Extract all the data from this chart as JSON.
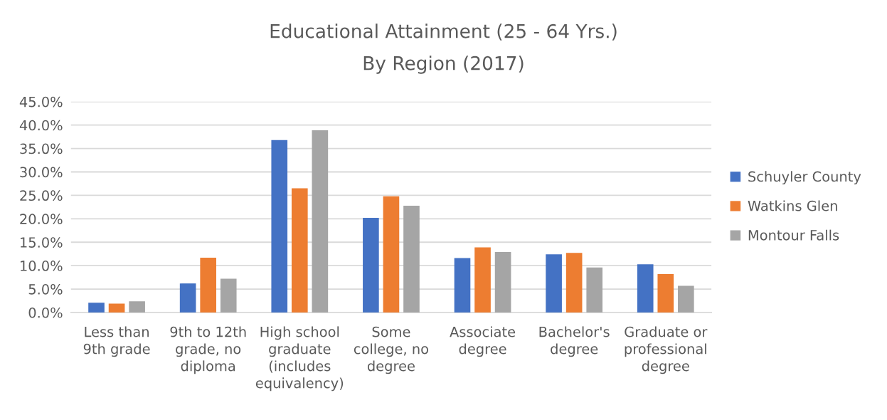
{
  "chart_data": {
    "type": "bar",
    "title": "Educational Attainment (25 - 64 Yrs.)",
    "subtitle": "By Region (2017)",
    "categories": [
      "Less than 9th grade",
      "9th to 12th grade, no diploma",
      "High school graduate (includes equivalency)",
      "Some college, no degree",
      "Associate degree",
      "Bachelor's degree",
      "Graduate or professional degree"
    ],
    "series": [
      {
        "name": "Schuyler County",
        "color": "#4472c4",
        "values": [
          2.1,
          6.2,
          36.8,
          20.2,
          11.6,
          12.4,
          10.3
        ]
      },
      {
        "name": "Watkins Glen",
        "color": "#ed7d31",
        "values": [
          1.9,
          11.7,
          26.5,
          24.8,
          13.9,
          12.7,
          8.2
        ]
      },
      {
        "name": "Montour Falls",
        "color": "#a5a5a5",
        "values": [
          2.4,
          7.2,
          38.9,
          22.8,
          12.9,
          9.6,
          5.7
        ]
      }
    ],
    "ylim": [
      0,
      45
    ],
    "yticks": [
      {
        "value": 0,
        "label": "0.0%"
      },
      {
        "value": 5,
        "label": "5.0%"
      },
      {
        "value": 10,
        "label": "10.0%"
      },
      {
        "value": 15,
        "label": "15.0%"
      },
      {
        "value": 20,
        "label": "20.0%"
      },
      {
        "value": 25,
        "label": "25.0%"
      },
      {
        "value": 30,
        "label": "30.0%"
      },
      {
        "value": 35,
        "label": "35.0%"
      },
      {
        "value": 40,
        "label": "40.0%"
      },
      {
        "value": 45,
        "label": "45.0%"
      }
    ],
    "grid": "y",
    "legend": "right"
  }
}
